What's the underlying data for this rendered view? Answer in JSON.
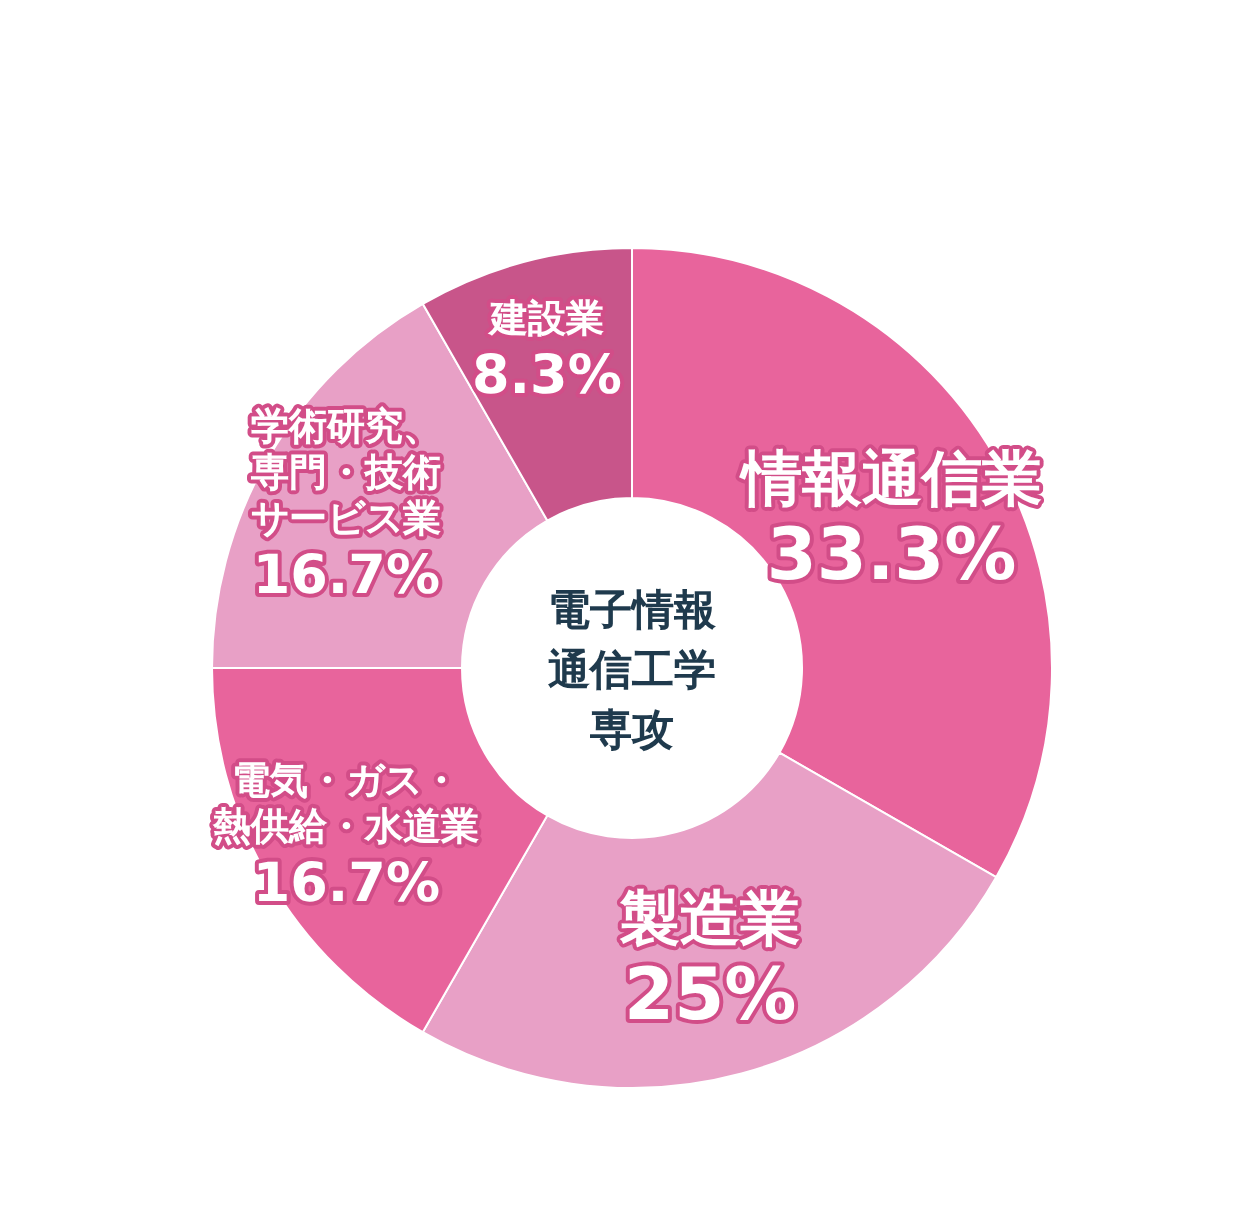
{
  "chart_data": {
    "type": "donut",
    "title": "電子情報通信工学専攻",
    "categories": [
      "情報通信業",
      "製造業",
      "電気・ガス・熱供給・水道業",
      "学術研究、専門・技術サービス業",
      "建設業"
    ],
    "values": [
      33.3,
      25,
      16.7,
      16.7,
      8.3
    ],
    "value_labels": [
      "33.3%",
      "25%",
      "16.7%",
      "16.7%",
      "8.3%"
    ],
    "colors": [
      "#e8649c",
      "#e8a0c6",
      "#e8649c",
      "#e8a0c6",
      "#c8558a"
    ]
  }
}
